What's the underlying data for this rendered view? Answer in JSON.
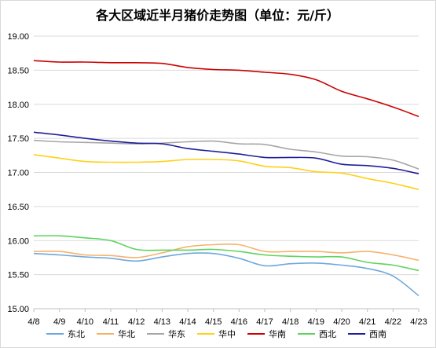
{
  "chart_data": {
    "type": "line",
    "title": "各大区域近半月猪价走势图（单位：元/斤）",
    "xlabel": "",
    "ylabel": "",
    "categories": [
      "4/8",
      "4/9",
      "4/10",
      "4/11",
      "4/12",
      "4/13",
      "4/14",
      "4/15",
      "4/16",
      "4/17",
      "4/18",
      "4/19",
      "4/20",
      "4/21",
      "4/22",
      "4/23"
    ],
    "y_ticks": [
      "19.00",
      "18.50",
      "18.00",
      "17.50",
      "17.00",
      "16.50",
      "16.00",
      "15.50",
      "15.00"
    ],
    "ylim": [
      15.0,
      19.0
    ],
    "grid": true,
    "legend_position": "bottom",
    "series": [
      {
        "name": "东北",
        "color": "#6fa8dc",
        "values": [
          15.81,
          15.79,
          15.76,
          15.74,
          15.7,
          15.76,
          15.81,
          15.81,
          15.74,
          15.63,
          15.66,
          15.67,
          15.64,
          15.59,
          15.48,
          15.19
        ]
      },
      {
        "name": "华北",
        "color": "#f6b26b",
        "values": [
          15.84,
          15.84,
          15.79,
          15.78,
          15.75,
          15.82,
          15.91,
          15.94,
          15.94,
          15.84,
          15.84,
          15.84,
          15.82,
          15.84,
          15.79,
          15.71
        ]
      },
      {
        "name": "华东",
        "color": "#a6a6a6",
        "values": [
          17.47,
          17.45,
          17.44,
          17.43,
          17.42,
          17.43,
          17.45,
          17.46,
          17.42,
          17.41,
          17.34,
          17.3,
          17.24,
          17.23,
          17.18,
          17.05
        ]
      },
      {
        "name": "华中",
        "color": "#ffd11a",
        "values": [
          17.26,
          17.21,
          17.16,
          17.15,
          17.15,
          17.16,
          17.19,
          17.19,
          17.17,
          17.09,
          17.07,
          17.01,
          16.99,
          16.91,
          16.84,
          16.75
        ]
      },
      {
        "name": "华南",
        "color": "#cc0000",
        "values": [
          18.64,
          18.62,
          18.62,
          18.61,
          18.61,
          18.6,
          18.54,
          18.51,
          18.5,
          18.47,
          18.44,
          18.36,
          18.19,
          18.08,
          17.96,
          17.82
        ]
      },
      {
        "name": "西北",
        "color": "#5fd35f",
        "values": [
          16.07,
          16.07,
          16.04,
          16.0,
          15.87,
          15.86,
          15.86,
          15.87,
          15.84,
          15.79,
          15.77,
          15.76,
          15.76,
          15.68,
          15.64,
          15.56
        ]
      },
      {
        "name": "西南",
        "color": "#1f1f99",
        "values": [
          17.59,
          17.55,
          17.5,
          17.46,
          17.43,
          17.42,
          17.35,
          17.31,
          17.27,
          17.22,
          17.22,
          17.21,
          17.12,
          17.1,
          17.06,
          16.98
        ]
      }
    ]
  }
}
